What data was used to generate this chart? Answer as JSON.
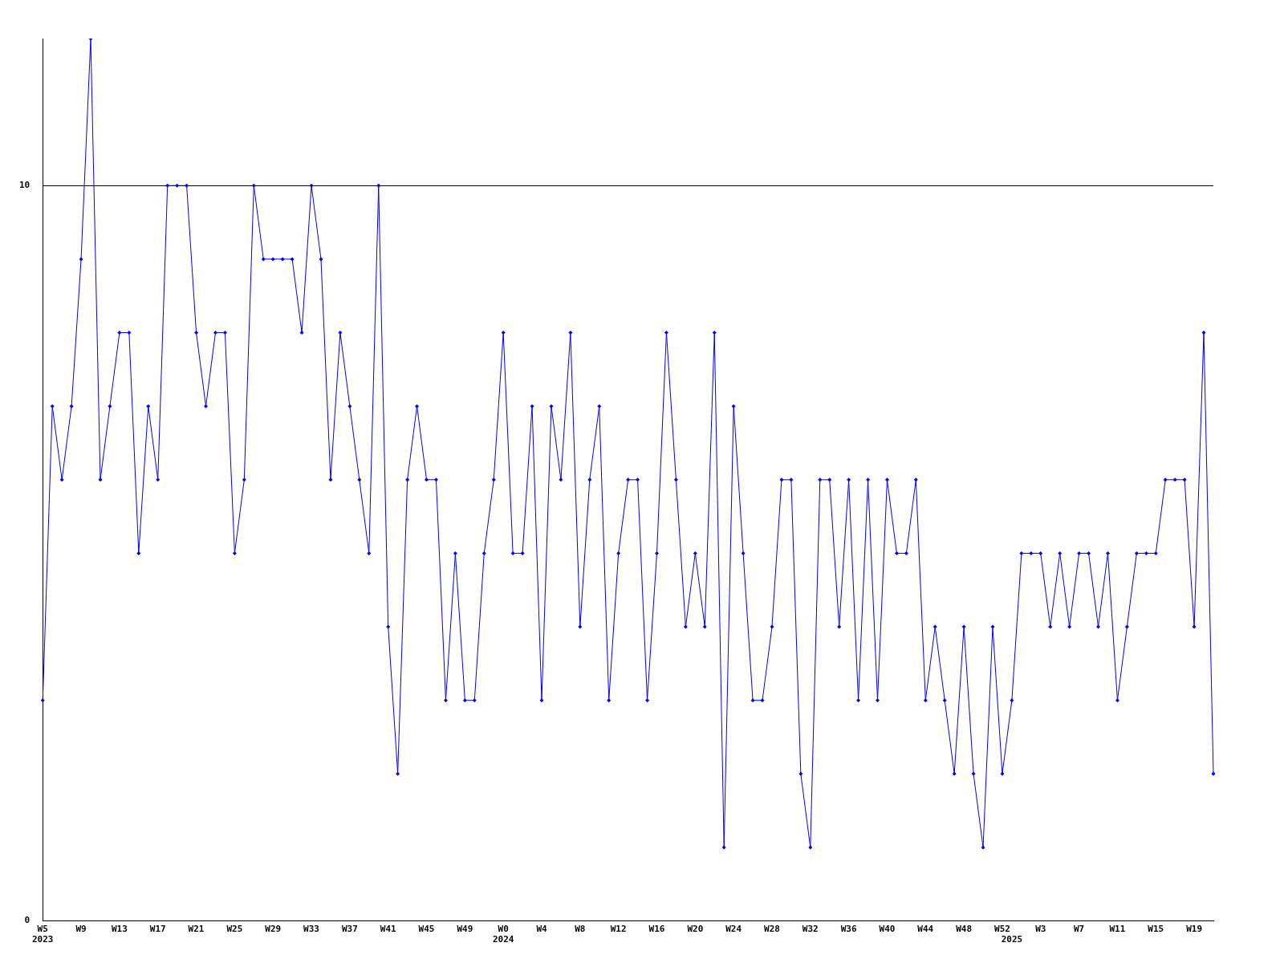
{
  "chart_data": {
    "type": "line",
    "categories": [
      "W5\n2023",
      null,
      null,
      null,
      "W9",
      null,
      null,
      null,
      "W13",
      null,
      null,
      null,
      "W17",
      null,
      null,
      null,
      "W21",
      null,
      null,
      null,
      "W25",
      null,
      null,
      null,
      "W29",
      null,
      null,
      null,
      "W33",
      null,
      null,
      null,
      "W37",
      null,
      null,
      null,
      "W41",
      null,
      null,
      null,
      "W45",
      null,
      null,
      null,
      "W49",
      null,
      null,
      null,
      "W0\n2024",
      null,
      null,
      null,
      "W4",
      null,
      null,
      null,
      "W8",
      null,
      null,
      null,
      "W12",
      null,
      null,
      null,
      "W16",
      null,
      null,
      null,
      "W20",
      null,
      null,
      null,
      "W24",
      null,
      null,
      null,
      "W28",
      null,
      null,
      null,
      "W32",
      null,
      null,
      null,
      "W36",
      null,
      null,
      null,
      "W40",
      null,
      null,
      null,
      "W44",
      null,
      null,
      null,
      "W48",
      null,
      null,
      null,
      "W52",
      "\n2025",
      null,
      null,
      "W3",
      null,
      null,
      null,
      "W7",
      null,
      null,
      null,
      "W11",
      null,
      null,
      null,
      "W15",
      null,
      null,
      null,
      "W19",
      null,
      null
    ],
    "series": [
      {
        "color": "#0000ff",
        "values": [
          3,
          7,
          6,
          7,
          9,
          12,
          6,
          7,
          8,
          8,
          5,
          7,
          6,
          10,
          10,
          10,
          8,
          7,
          8,
          8,
          5,
          6,
          10,
          9,
          9,
          9,
          9,
          8,
          10,
          9,
          6,
          8,
          7,
          6,
          5,
          10,
          4,
          2,
          6,
          7,
          6,
          6,
          3,
          5,
          3,
          3,
          5,
          6,
          8,
          5,
          5,
          7,
          3,
          7,
          6,
          8,
          4,
          6,
          7,
          3,
          5,
          6,
          6,
          3,
          5,
          8,
          6,
          4,
          5,
          4,
          8,
          1,
          7,
          5,
          3,
          3,
          4,
          6,
          6,
          2,
          1,
          6,
          6,
          4,
          6,
          3,
          6,
          3,
          6,
          5,
          5,
          6,
          3,
          4,
          3,
          2,
          4,
          2,
          1,
          4,
          2,
          3,
          5,
          5,
          5,
          4,
          5,
          4,
          5,
          5,
          4,
          5,
          3,
          4,
          5,
          5,
          5,
          6,
          6,
          6,
          4,
          8,
          2
        ]
      }
    ],
    "ylim": [
      0,
      12
    ],
    "yticks": [
      0,
      10
    ],
    "grid": "y",
    "marker": "diamond",
    "legend": false
  }
}
